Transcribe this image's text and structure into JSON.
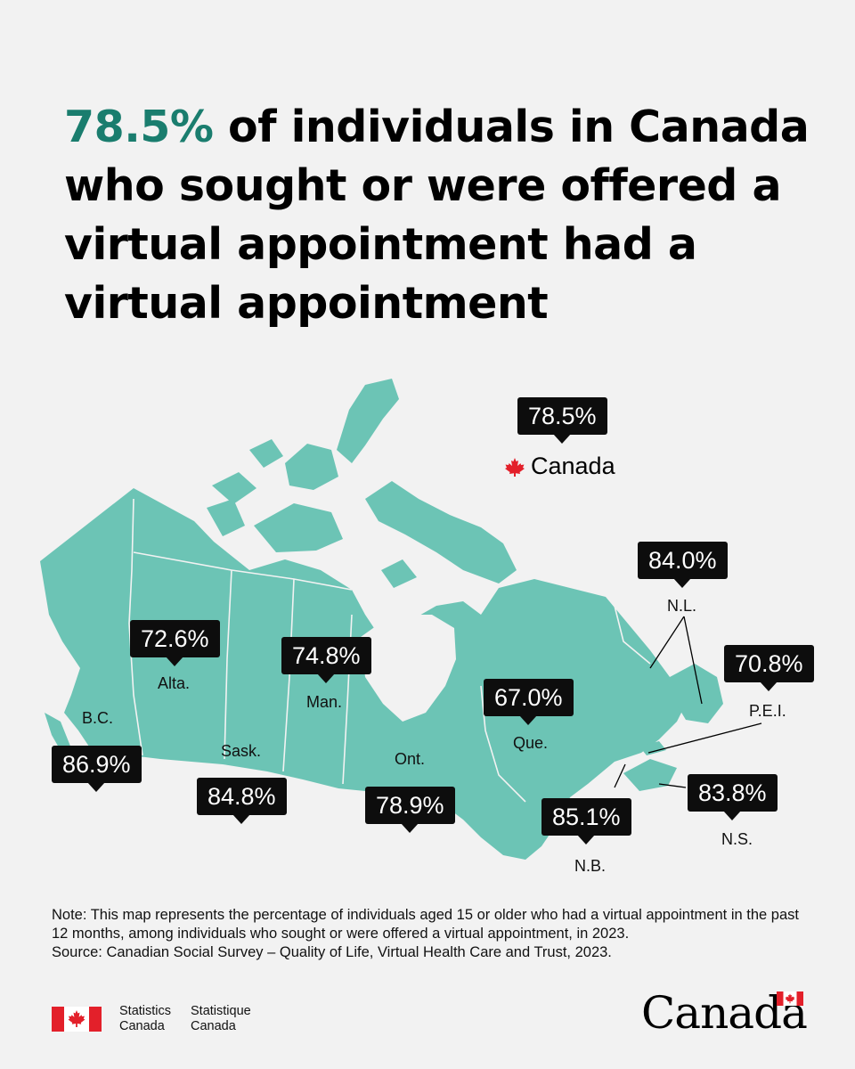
{
  "headline": {
    "accent": "78.5%",
    "rest": " of individuals in Canada who sought or were offered a virtual appointment had a virtual appointment"
  },
  "national": {
    "value": "78.5%",
    "label": "Canada",
    "icon": "maple-leaf-icon"
  },
  "regions": [
    {
      "id": "bc",
      "label": "B.C.",
      "value": "86.9%"
    },
    {
      "id": "alta",
      "label": "Alta.",
      "value": "72.6%"
    },
    {
      "id": "sask",
      "label": "Sask.",
      "value": "84.8%"
    },
    {
      "id": "man",
      "label": "Man.",
      "value": "74.8%"
    },
    {
      "id": "ont",
      "label": "Ont.",
      "value": "78.9%"
    },
    {
      "id": "que",
      "label": "Que.",
      "value": "67.0%"
    },
    {
      "id": "nl",
      "label": "N.L.",
      "value": "84.0%"
    },
    {
      "id": "pei",
      "label": "P.E.I.",
      "value": "70.8%"
    },
    {
      "id": "nb",
      "label": "N.B.",
      "value": "85.1%"
    },
    {
      "id": "ns",
      "label": "N.S.",
      "value": "83.8%"
    }
  ],
  "note": {
    "line1": "Note: This map represents the percentage of individuals aged 15 or older who had a virtual appointment in the past 12 months, among individuals who sought or were offered a virtual appointment, in 2023.",
    "line2": "Source: Canadian Social Survey – Quality of Life, Virtual Health Care and Trust, 2023."
  },
  "footer": {
    "en_line1": "Statistics",
    "en_line2": "Canada",
    "fr_line1": "Statistique",
    "fr_line2": "Canada",
    "wordmark": "Canada"
  },
  "colors": {
    "land": "#6cc4b5",
    "accent": "#1a7d6e",
    "callout": "#0d0d0d",
    "flag_red": "#e3202a"
  }
}
